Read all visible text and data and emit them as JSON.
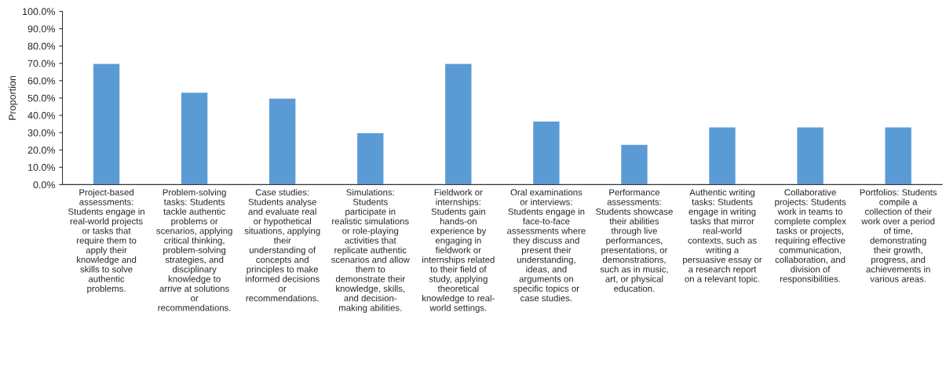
{
  "chart_data": {
    "type": "bar",
    "ylabel": "Proportion",
    "categories": [
      "Project-based\nassessments:\nStudents engage in\nreal-world projects\nor tasks that\nrequire them to\napply their\nknowledge and\nskills to solve\nauthentic\nproblems.",
      "Problem-solving\ntasks: Students\ntackle authentic\nproblems or\nscenarios, applying\ncritical thinking,\nproblem-solving\nstrategies, and\ndisciplinary\nknowledge to\narrive at solutions\nor\nrecommendations.",
      "Case studies:\nStudents analyse\nand evaluate real\nor hypothetical\nsituations, applying\ntheir\nunderstanding of\nconcepts and\nprinciples to make\ninformed decisions\nor\nrecommendations.",
      "Simulations:\nStudents\nparticipate in\nrealistic simulations\nor role-playing\nactivities that\nreplicate authentic\nscenarios and allow\nthem to\ndemonstrate their\nknowledge, skills,\nand decision-\nmaking abilities.",
      "Fieldwork or\ninternships:\nStudents gain\nhands-on\nexperience by\nengaging in\nfieldwork or\ninternships related\nto their field of\nstudy, applying\ntheoretical\nknowledge to real-\nworld settings.",
      "Oral examinations\nor interviews:\nStudents engage in\nface-to-face\nassessments where\nthey discuss and\npresent their\nunderstanding,\nideas, and\narguments on\nspecific topics or\ncase studies.",
      "Performance\nassessments:\nStudents showcase\ntheir abilities\nthrough live\nperformances,\npresentations, or\ndemonstrations,\nsuch as in music,\nart, or physical\neducation.",
      "Authentic writing\ntasks: Students\nengage in writing\ntasks that mirror\nreal-world\ncontexts, such as\nwriting a\npersuasive essay or\na research report\non a relevant topic.",
      "Collaborative\nprojects: Students\nwork in teams to\ncomplete complex\ntasks or projects,\nrequiring effective\ncommunication,\ncollaboration, and\ndivision of\nresponsibilities.",
      "Portfolios: Students\ncompile a\ncollection of their\nwork over a period\nof time,\ndemonstrating\ntheir growth,\nprogress, and\nachievements in\nvarious areas."
    ],
    "values": [
      70,
      53.3,
      50,
      30,
      70,
      36.7,
      23.3,
      33.3,
      33.3,
      33.3
    ],
    "color": "#5b9bd5",
    "ylim": [
      0,
      100
    ],
    "yticks": [
      {
        "value": 0,
        "label": "0.0%"
      },
      {
        "value": 10,
        "label": "10.0%"
      },
      {
        "value": 20,
        "label": "20.0%"
      },
      {
        "value": 30,
        "label": "30.0%"
      },
      {
        "value": 40,
        "label": "40.0%"
      },
      {
        "value": 50,
        "label": "50.0%"
      },
      {
        "value": 60,
        "label": "60.0%"
      },
      {
        "value": 70,
        "label": "70.0%"
      },
      {
        "value": 80,
        "label": "80.0%"
      },
      {
        "value": 90,
        "label": "90.0%"
      },
      {
        "value": 100,
        "label": "100.0%"
      }
    ],
    "grid": false
  }
}
